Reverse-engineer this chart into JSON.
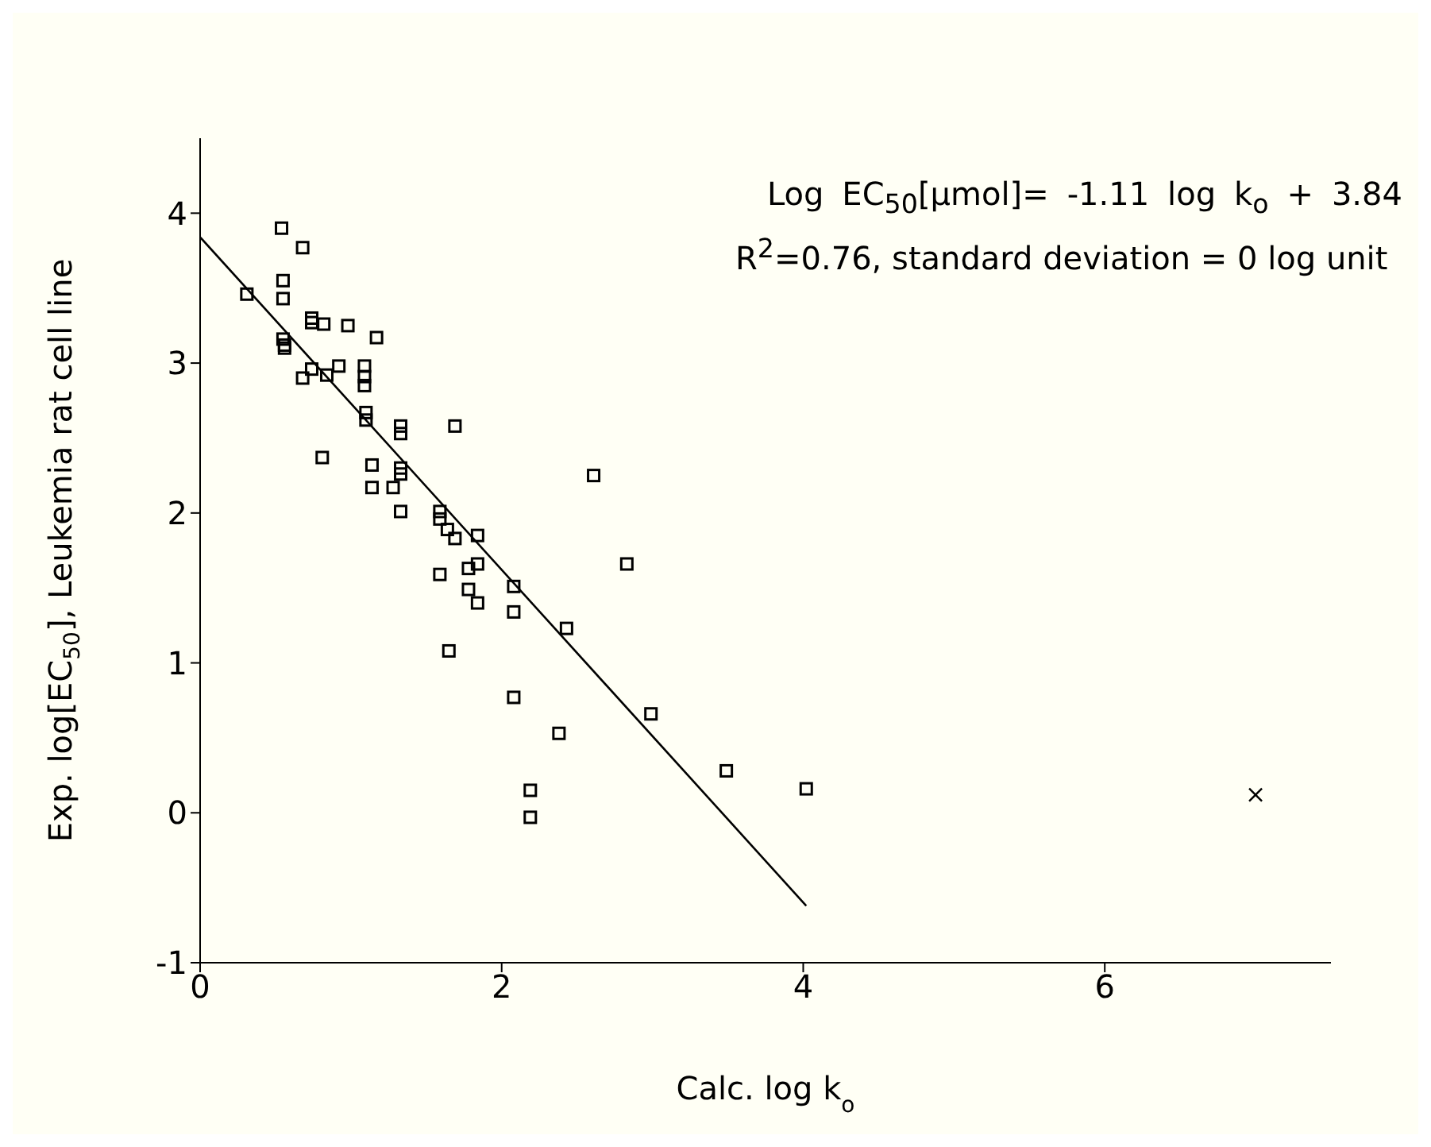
{
  "chart_data": {
    "type": "scatter",
    "xlabel": "Calc. log k$_{o}$",
    "ylabel": "Exp. log[EC$_{50}$], Leukemia rat cell line",
    "xlim": [
      0,
      7.5
    ],
    "xticks": [
      0,
      2,
      4,
      6
    ],
    "ylim": [
      -1,
      4.5
    ],
    "yticks": [
      -1,
      0,
      1,
      2,
      3,
      4
    ],
    "annotations": [
      "Log EC$_{50}$[µmol]= -1.11 log k$_{o}$ + 3.84 R$^{2}$=0.76, standard deviation = 0 log unit"
    ],
    "series": [
      {
        "type": "scatter",
        "marker": "square",
        "color": "#000000",
        "x": [
          0.31,
          0.54,
          0.68,
          0.55,
          0.55,
          0.55,
          0.56,
          0.56,
          0.74,
          0.74,
          0.82,
          0.98,
          1.17,
          0.92,
          0.74,
          0.68,
          0.84,
          1.09,
          1.09,
          1.09,
          1.1,
          1.1,
          1.33,
          1.33,
          1.69,
          0.81,
          1.14,
          1.14,
          1.28,
          1.33,
          1.33,
          1.33,
          1.59,
          1.59,
          1.64,
          1.69,
          1.84,
          1.59,
          1.78,
          1.84,
          1.78,
          1.84,
          2.08,
          2.08,
          1.65,
          2.43,
          2.61,
          2.83,
          2.08,
          2.38,
          2.99,
          3.49,
          4.02,
          2.19,
          2.19
        ],
        "values": [
          3.46,
          3.9,
          3.77,
          3.55,
          3.43,
          3.16,
          3.12,
          3.1,
          3.3,
          3.27,
          3.26,
          3.25,
          3.17,
          2.98,
          2.96,
          2.9,
          2.92,
          2.98,
          2.91,
          2.85,
          2.67,
          2.62,
          2.58,
          2.53,
          2.58,
          2.37,
          2.32,
          2.17,
          2.17,
          2.3,
          2.26,
          2.01,
          2.01,
          1.96,
          1.89,
          1.83,
          1.85,
          1.59,
          1.63,
          1.66,
          1.49,
          1.4,
          1.51,
          1.34,
          1.08,
          1.23,
          2.25,
          1.66,
          0.77,
          0.53,
          0.66,
          0.28,
          0.16,
          0.15,
          -0.03
        ]
      },
      {
        "type": "scatter",
        "marker": "cross",
        "color": "#000000",
        "x": [
          7.0
        ],
        "values": [
          0.12
        ]
      },
      {
        "type": "line",
        "marker": "none",
        "line_style": "solid",
        "color": "#000000",
        "x": [
          0,
          4.02
        ],
        "values": [
          3.84,
          -0.62
        ]
      }
    ]
  }
}
